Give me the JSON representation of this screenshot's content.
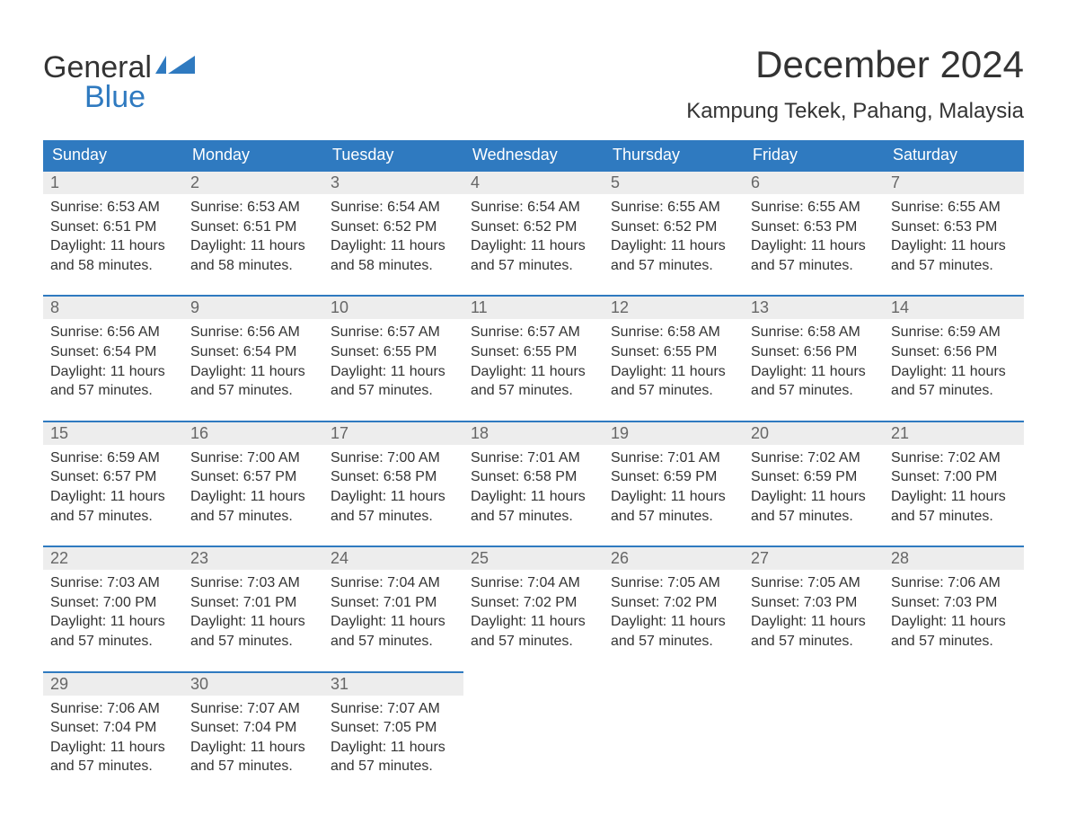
{
  "branding": {
    "word1": "General",
    "word2": "Blue",
    "flag_color": "#2f7ac0"
  },
  "header": {
    "month_title": "December 2024",
    "location": "Kampung Tekek, Pahang, Malaysia"
  },
  "styling": {
    "header_bg": "#2f7ac0",
    "header_text": "#ffffff",
    "daynum_bg": "#ededed",
    "daynum_border": "#2f7ac0",
    "body_text": "#333333",
    "daynum_text": "#666666",
    "page_bg": "#ffffff",
    "th_fontsize": 18,
    "title_fontsize": 42,
    "location_fontsize": 24,
    "cell_fontsize": 16
  },
  "weekdays": [
    "Sunday",
    "Monday",
    "Tuesday",
    "Wednesday",
    "Thursday",
    "Friday",
    "Saturday"
  ],
  "labels": {
    "sunrise": "Sunrise:",
    "sunset": "Sunset:",
    "daylight": "Daylight:"
  },
  "weeks": [
    [
      {
        "day": "1",
        "sunrise": "6:53 AM",
        "sunset": "6:51 PM",
        "daylight1": "11 hours",
        "daylight2": "and 58 minutes."
      },
      {
        "day": "2",
        "sunrise": "6:53 AM",
        "sunset": "6:51 PM",
        "daylight1": "11 hours",
        "daylight2": "and 58 minutes."
      },
      {
        "day": "3",
        "sunrise": "6:54 AM",
        "sunset": "6:52 PM",
        "daylight1": "11 hours",
        "daylight2": "and 58 minutes."
      },
      {
        "day": "4",
        "sunrise": "6:54 AM",
        "sunset": "6:52 PM",
        "daylight1": "11 hours",
        "daylight2": "and 57 minutes."
      },
      {
        "day": "5",
        "sunrise": "6:55 AM",
        "sunset": "6:52 PM",
        "daylight1": "11 hours",
        "daylight2": "and 57 minutes."
      },
      {
        "day": "6",
        "sunrise": "6:55 AM",
        "sunset": "6:53 PM",
        "daylight1": "11 hours",
        "daylight2": "and 57 minutes."
      },
      {
        "day": "7",
        "sunrise": "6:55 AM",
        "sunset": "6:53 PM",
        "daylight1": "11 hours",
        "daylight2": "and 57 minutes."
      }
    ],
    [
      {
        "day": "8",
        "sunrise": "6:56 AM",
        "sunset": "6:54 PM",
        "daylight1": "11 hours",
        "daylight2": "and 57 minutes."
      },
      {
        "day": "9",
        "sunrise": "6:56 AM",
        "sunset": "6:54 PM",
        "daylight1": "11 hours",
        "daylight2": "and 57 minutes."
      },
      {
        "day": "10",
        "sunrise": "6:57 AM",
        "sunset": "6:55 PM",
        "daylight1": "11 hours",
        "daylight2": "and 57 minutes."
      },
      {
        "day": "11",
        "sunrise": "6:57 AM",
        "sunset": "6:55 PM",
        "daylight1": "11 hours",
        "daylight2": "and 57 minutes."
      },
      {
        "day": "12",
        "sunrise": "6:58 AM",
        "sunset": "6:55 PM",
        "daylight1": "11 hours",
        "daylight2": "and 57 minutes."
      },
      {
        "day": "13",
        "sunrise": "6:58 AM",
        "sunset": "6:56 PM",
        "daylight1": "11 hours",
        "daylight2": "and 57 minutes."
      },
      {
        "day": "14",
        "sunrise": "6:59 AM",
        "sunset": "6:56 PM",
        "daylight1": "11 hours",
        "daylight2": "and 57 minutes."
      }
    ],
    [
      {
        "day": "15",
        "sunrise": "6:59 AM",
        "sunset": "6:57 PM",
        "daylight1": "11 hours",
        "daylight2": "and 57 minutes."
      },
      {
        "day": "16",
        "sunrise": "7:00 AM",
        "sunset": "6:57 PM",
        "daylight1": "11 hours",
        "daylight2": "and 57 minutes."
      },
      {
        "day": "17",
        "sunrise": "7:00 AM",
        "sunset": "6:58 PM",
        "daylight1": "11 hours",
        "daylight2": "and 57 minutes."
      },
      {
        "day": "18",
        "sunrise": "7:01 AM",
        "sunset": "6:58 PM",
        "daylight1": "11 hours",
        "daylight2": "and 57 minutes."
      },
      {
        "day": "19",
        "sunrise": "7:01 AM",
        "sunset": "6:59 PM",
        "daylight1": "11 hours",
        "daylight2": "and 57 minutes."
      },
      {
        "day": "20",
        "sunrise": "7:02 AM",
        "sunset": "6:59 PM",
        "daylight1": "11 hours",
        "daylight2": "and 57 minutes."
      },
      {
        "day": "21",
        "sunrise": "7:02 AM",
        "sunset": "7:00 PM",
        "daylight1": "11 hours",
        "daylight2": "and 57 minutes."
      }
    ],
    [
      {
        "day": "22",
        "sunrise": "7:03 AM",
        "sunset": "7:00 PM",
        "daylight1": "11 hours",
        "daylight2": "and 57 minutes."
      },
      {
        "day": "23",
        "sunrise": "7:03 AM",
        "sunset": "7:01 PM",
        "daylight1": "11 hours",
        "daylight2": "and 57 minutes."
      },
      {
        "day": "24",
        "sunrise": "7:04 AM",
        "sunset": "7:01 PM",
        "daylight1": "11 hours",
        "daylight2": "and 57 minutes."
      },
      {
        "day": "25",
        "sunrise": "7:04 AM",
        "sunset": "7:02 PM",
        "daylight1": "11 hours",
        "daylight2": "and 57 minutes."
      },
      {
        "day": "26",
        "sunrise": "7:05 AM",
        "sunset": "7:02 PM",
        "daylight1": "11 hours",
        "daylight2": "and 57 minutes."
      },
      {
        "day": "27",
        "sunrise": "7:05 AM",
        "sunset": "7:03 PM",
        "daylight1": "11 hours",
        "daylight2": "and 57 minutes."
      },
      {
        "day": "28",
        "sunrise": "7:06 AM",
        "sunset": "7:03 PM",
        "daylight1": "11 hours",
        "daylight2": "and 57 minutes."
      }
    ],
    [
      {
        "day": "29",
        "sunrise": "7:06 AM",
        "sunset": "7:04 PM",
        "daylight1": "11 hours",
        "daylight2": "and 57 minutes."
      },
      {
        "day": "30",
        "sunrise": "7:07 AM",
        "sunset": "7:04 PM",
        "daylight1": "11 hours",
        "daylight2": "and 57 minutes."
      },
      {
        "day": "31",
        "sunrise": "7:07 AM",
        "sunset": "7:05 PM",
        "daylight1": "11 hours",
        "daylight2": "and 57 minutes."
      },
      null,
      null,
      null,
      null
    ]
  ]
}
